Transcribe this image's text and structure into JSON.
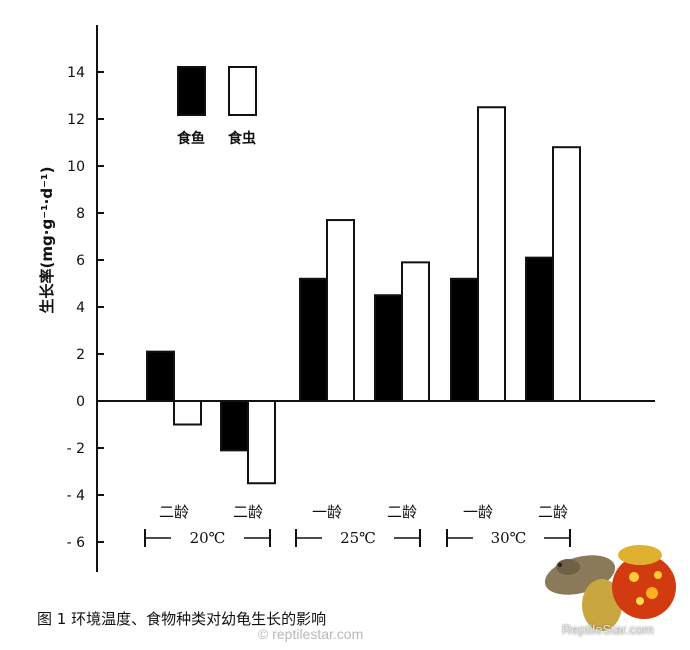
{
  "chart_data": {
    "type": "bar",
    "ylabel": "生长率(mg·g⁻¹·d⁻¹)",
    "ylim": [
      -7,
      15
    ],
    "yticks": [
      -6,
      -4,
      -2,
      0,
      2,
      4,
      6,
      8,
      10,
      12,
      14
    ],
    "categories": [
      "二龄",
      "二龄",
      "一龄",
      "二龄",
      "一龄",
      "二龄"
    ],
    "groups": [
      {
        "label": "20℃",
        "categories": [
          0,
          1
        ]
      },
      {
        "label": "25℃",
        "categories": [
          2,
          3
        ]
      },
      {
        "label": "30℃",
        "categories": [
          4,
          5
        ]
      }
    ],
    "series": [
      {
        "name": "食鱼",
        "color": "#000000",
        "values": [
          2.1,
          -2.1,
          5.2,
          4.5,
          5.2,
          6.1
        ]
      },
      {
        "name": "食虫",
        "color": "#ffffff",
        "values": [
          -1.0,
          -3.5,
          7.7,
          5.9,
          12.5,
          10.8
        ]
      }
    ],
    "legend": "top-left",
    "grid": false
  },
  "caption": "图 1   环境温度、食物种类对幼龟生长的影响",
  "watermark": "© reptilestar.com",
  "logo": {
    "name": "reptilestar-logo",
    "text": "ReptileStar.com"
  }
}
